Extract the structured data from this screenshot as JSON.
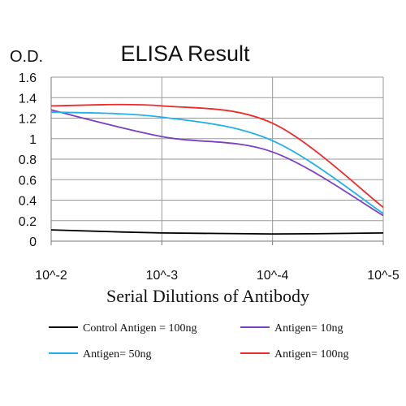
{
  "chart_data": {
    "type": "line",
    "title": "ELISA Result",
    "ylabel": "O.D.",
    "xlabel": "Serial Dilutions of Antibody",
    "x_scale": "log",
    "x": [
      0.01,
      0.001,
      0.0001,
      1e-05
    ],
    "x_tick_labels": [
      "10^-2",
      "10^-3",
      "10^-4",
      "10^-5"
    ],
    "ylim": [
      0,
      1.6
    ],
    "y_ticks": [
      0,
      0.2,
      0.4,
      0.6,
      0.8,
      1,
      1.2,
      1.4,
      1.6
    ],
    "grid": true,
    "legend_position": "bottom",
    "series": [
      {
        "name": "Control Antigen = 100ng",
        "color": "#000000",
        "points": [
          [
            0.01,
            0.11
          ],
          [
            0.001,
            0.08
          ],
          [
            0.0001,
            0.07
          ],
          [
            1e-05,
            0.08
          ]
        ]
      },
      {
        "name": "Antigen= 10ng",
        "color": "#7b3fc4",
        "points": [
          [
            0.01,
            1.28
          ],
          [
            0.001,
            1.02
          ],
          [
            0.0001,
            0.87
          ],
          [
            1e-05,
            0.25
          ]
        ]
      },
      {
        "name": "Antigen= 50ng",
        "color": "#22b0ea",
        "points": [
          [
            0.01,
            1.26
          ],
          [
            0.001,
            1.21
          ],
          [
            0.0001,
            0.98
          ],
          [
            1e-05,
            0.27
          ]
        ]
      },
      {
        "name": "Antigen= 100ng",
        "color": "#ee2a2a",
        "points": [
          [
            0.01,
            1.32
          ],
          [
            0.001,
            1.32
          ],
          [
            0.0001,
            1.15
          ],
          [
            1e-05,
            0.33
          ]
        ]
      }
    ]
  }
}
